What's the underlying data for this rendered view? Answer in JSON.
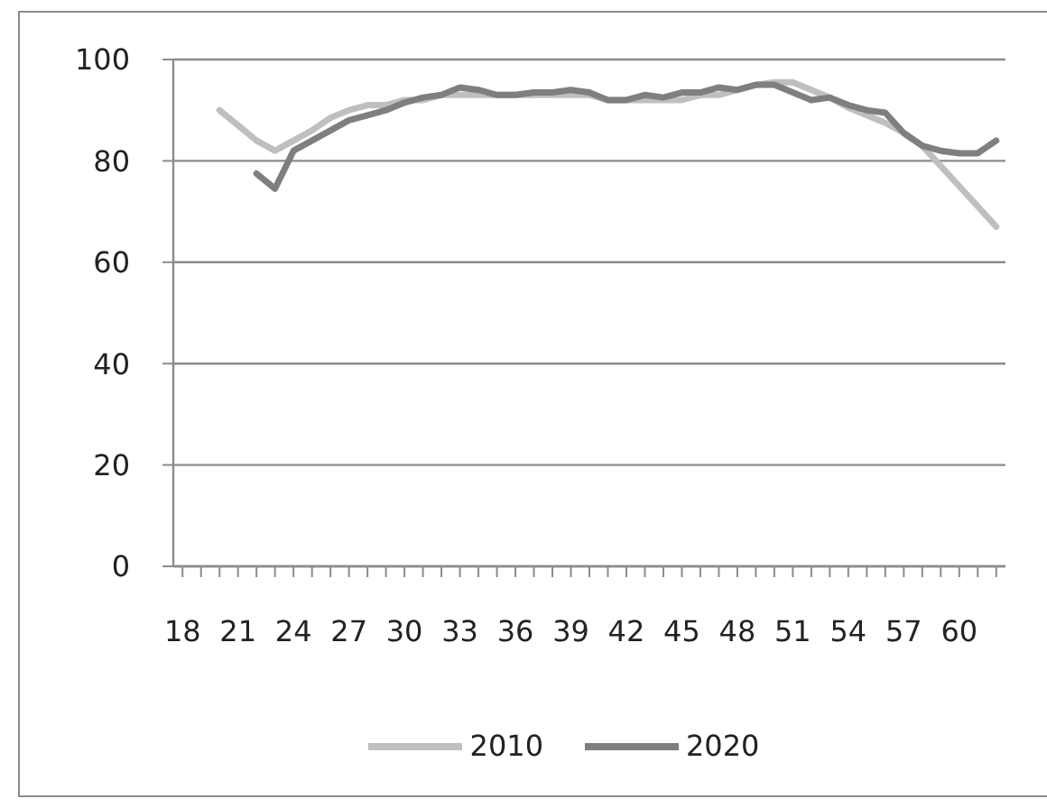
{
  "chart_data": {
    "type": "line",
    "categories": [
      "18",
      null,
      null,
      "21",
      null,
      null,
      "24",
      null,
      null,
      "27",
      null,
      null,
      "30",
      null,
      null,
      "33",
      null,
      null,
      "36",
      null,
      null,
      "39",
      null,
      null,
      "42",
      null,
      null,
      "45",
      null,
      null,
      "48",
      null,
      null,
      "51",
      null,
      null,
      "54",
      null,
      null,
      "57",
      null,
      null,
      "60",
      null,
      null
    ],
    "series": [
      {
        "name": "2010",
        "color": "#bfbfbf",
        "values": [
          null,
          null,
          90,
          87,
          84,
          82,
          84,
          86,
          88.5,
          90,
          91,
          91,
          92,
          92,
          93,
          93,
          93,
          93,
          93,
          93,
          93,
          93,
          93,
          92,
          92,
          92,
          92,
          92,
          93,
          93,
          94,
          95,
          95.5,
          95.5,
          94,
          92.5,
          90.5,
          89,
          87.5,
          85.5,
          83,
          79,
          75,
          71,
          67
        ]
      },
      {
        "name": "2020",
        "color": "#7f7f7f",
        "values": [
          null,
          null,
          null,
          null,
          77.5,
          74.5,
          82,
          84,
          86,
          88,
          89,
          90,
          91.5,
          92.5,
          93,
          94.5,
          94,
          93,
          93,
          93.5,
          93.5,
          94,
          93.5,
          92,
          92,
          93,
          92.5,
          93.5,
          93.5,
          94.5,
          94,
          95,
          95,
          93.5,
          92,
          92.5,
          91,
          90,
          89.5,
          85.5,
          83,
          82,
          81.5,
          81.5,
          84
        ]
      }
    ],
    "ylim": [
      0,
      100
    ],
    "yticks": [
      0,
      20,
      40,
      60,
      80,
      100
    ],
    "grid": "y",
    "legend": "bottom",
    "marker": "none",
    "line_style": "solid"
  }
}
